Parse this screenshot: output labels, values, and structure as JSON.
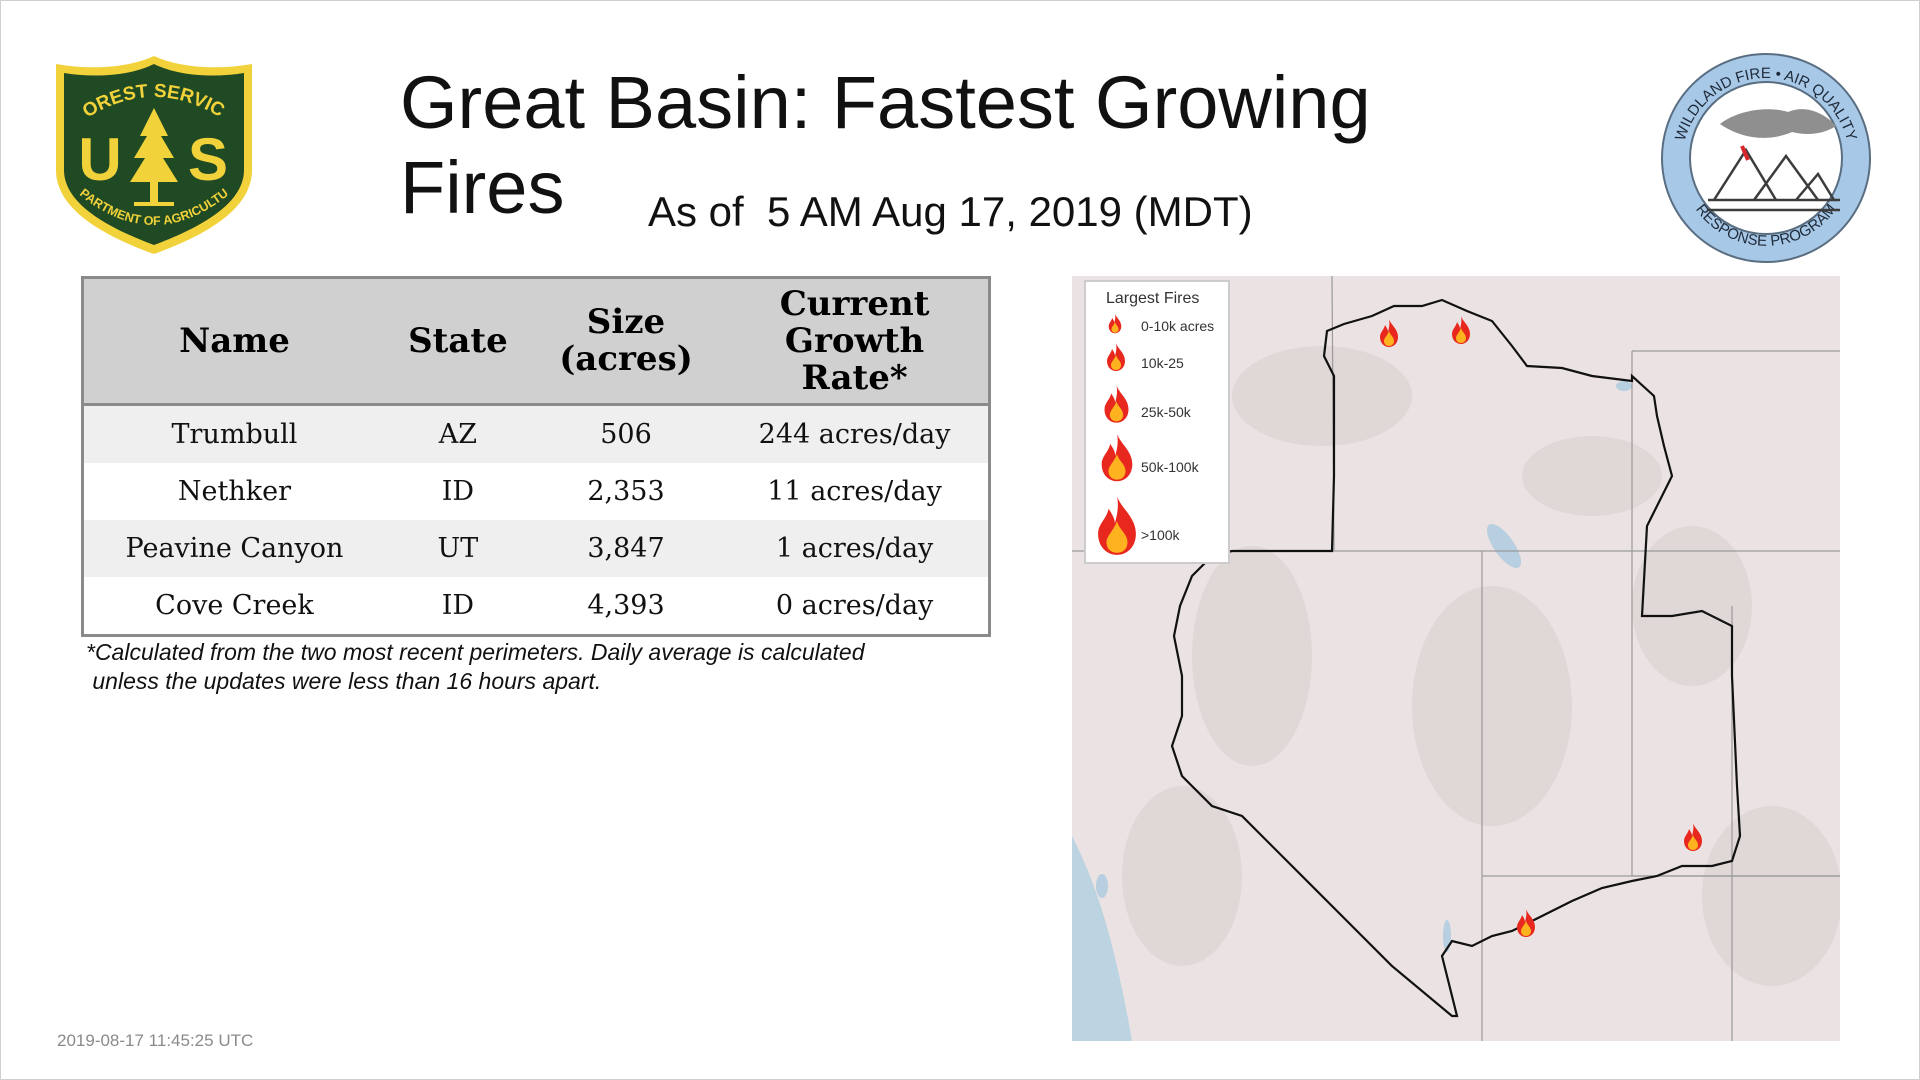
{
  "title": "Great Basin: Fastest Growing Fires",
  "subtitle": "As of  5 AM Aug 17, 2019 (MDT)",
  "logos": {
    "usfs": {
      "top_text": "FOREST SERVICE",
      "bottom_text": "DEPARTMENT OF AGRICULTURE",
      "left_letter": "U",
      "right_letter": "S",
      "colors": {
        "green": "#1f4a24",
        "gold": "#f2d23a"
      }
    },
    "wfaq": {
      "ring_text_top": "WILDLAND FIRE • AIR QUALITY",
      "ring_text_bottom": "RESPONSE PROGRAM",
      "ring_color": "#a8c8e8"
    }
  },
  "table": {
    "headers": {
      "name": "Name",
      "state": "State",
      "size_line1": "Size",
      "size_line2": "(acres)",
      "growth_line1": "Current",
      "growth_line2": "Growth",
      "growth_line3": "Rate*"
    },
    "rows": [
      {
        "name": "Trumbull",
        "state": "AZ",
        "size": "506",
        "growth": "244 acres/day"
      },
      {
        "name": "Nethker",
        "state": "ID",
        "size": "2,353",
        "growth": "11 acres/day"
      },
      {
        "name": "Peavine Canyon",
        "state": "UT",
        "size": "3,847",
        "growth": "1 acres/day"
      },
      {
        "name": "Cove Creek",
        "state": "ID",
        "size": "4,393",
        "growth": "0 acres/day"
      }
    ]
  },
  "footnote": {
    "line1": "*Calculated from the two most recent perimeters. Daily average is calculated",
    "line2": " unless the updates were less than 16 hours apart."
  },
  "timestamp": "2019-08-17 11:45:25 UTC",
  "map": {
    "legend_title": "Largest Fires",
    "legend_items": [
      "0-10k acres",
      "10k-25",
      "25k-50k",
      "50k-100k",
      ">100k"
    ],
    "colors": {
      "background": "#ebe3e3",
      "flame_outer": "#e8281e",
      "flame_inner": "#ffb21f",
      "boundary": "#111111"
    },
    "icon": "flame-icon"
  }
}
